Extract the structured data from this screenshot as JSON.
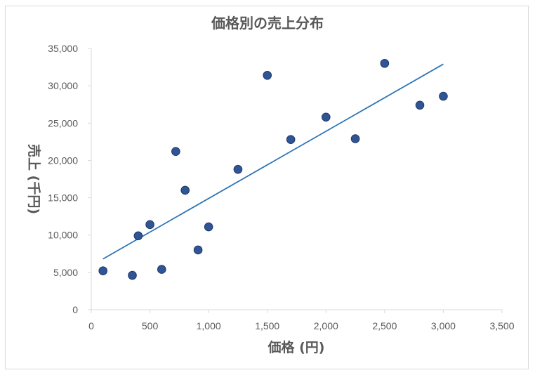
{
  "chart_data": {
    "type": "scatter",
    "title": "価格別の売上分布",
    "xlabel": "価格 (円)",
    "ylabel": "売上 (千円)",
    "xlim": [
      0,
      3500
    ],
    "ylim": [
      0,
      35000
    ],
    "x_ticks": [
      "0",
      "500",
      "1,000",
      "1,500",
      "2,000",
      "2,500",
      "3,000",
      "3,500"
    ],
    "y_ticks": [
      "0",
      "5,000",
      "10,000",
      "15,000",
      "20,000",
      "25,000",
      "30,000",
      "35,000"
    ],
    "grid": false,
    "legend": "none",
    "series": [
      {
        "points": [
          {
            "x": 100,
            "y": 5200
          },
          {
            "x": 350,
            "y": 4600
          },
          {
            "x": 400,
            "y": 9900
          },
          {
            "x": 500,
            "y": 11400
          },
          {
            "x": 600,
            "y": 5400
          },
          {
            "x": 720,
            "y": 21200
          },
          {
            "x": 800,
            "y": 16000
          },
          {
            "x": 910,
            "y": 8000
          },
          {
            "x": 1000,
            "y": 11100
          },
          {
            "x": 1250,
            "y": 18800
          },
          {
            "x": 1500,
            "y": 31400
          },
          {
            "x": 1700,
            "y": 22800
          },
          {
            "x": 2000,
            "y": 25800
          },
          {
            "x": 2250,
            "y": 22900
          },
          {
            "x": 2500,
            "y": 33000
          },
          {
            "x": 2800,
            "y": 27400
          },
          {
            "x": 3000,
            "y": 28600
          }
        ],
        "trendline": {
          "type": "linear",
          "x": [
            100,
            3000
          ],
          "y": [
            6800,
            32900
          ]
        },
        "color": "#2f5597"
      }
    ]
  },
  "colors": {
    "marker": "#2f5597",
    "marker_edge": "#1f3864",
    "trendline": "#2e75b6",
    "text": "#595959",
    "axis": "#d9d9d9"
  }
}
